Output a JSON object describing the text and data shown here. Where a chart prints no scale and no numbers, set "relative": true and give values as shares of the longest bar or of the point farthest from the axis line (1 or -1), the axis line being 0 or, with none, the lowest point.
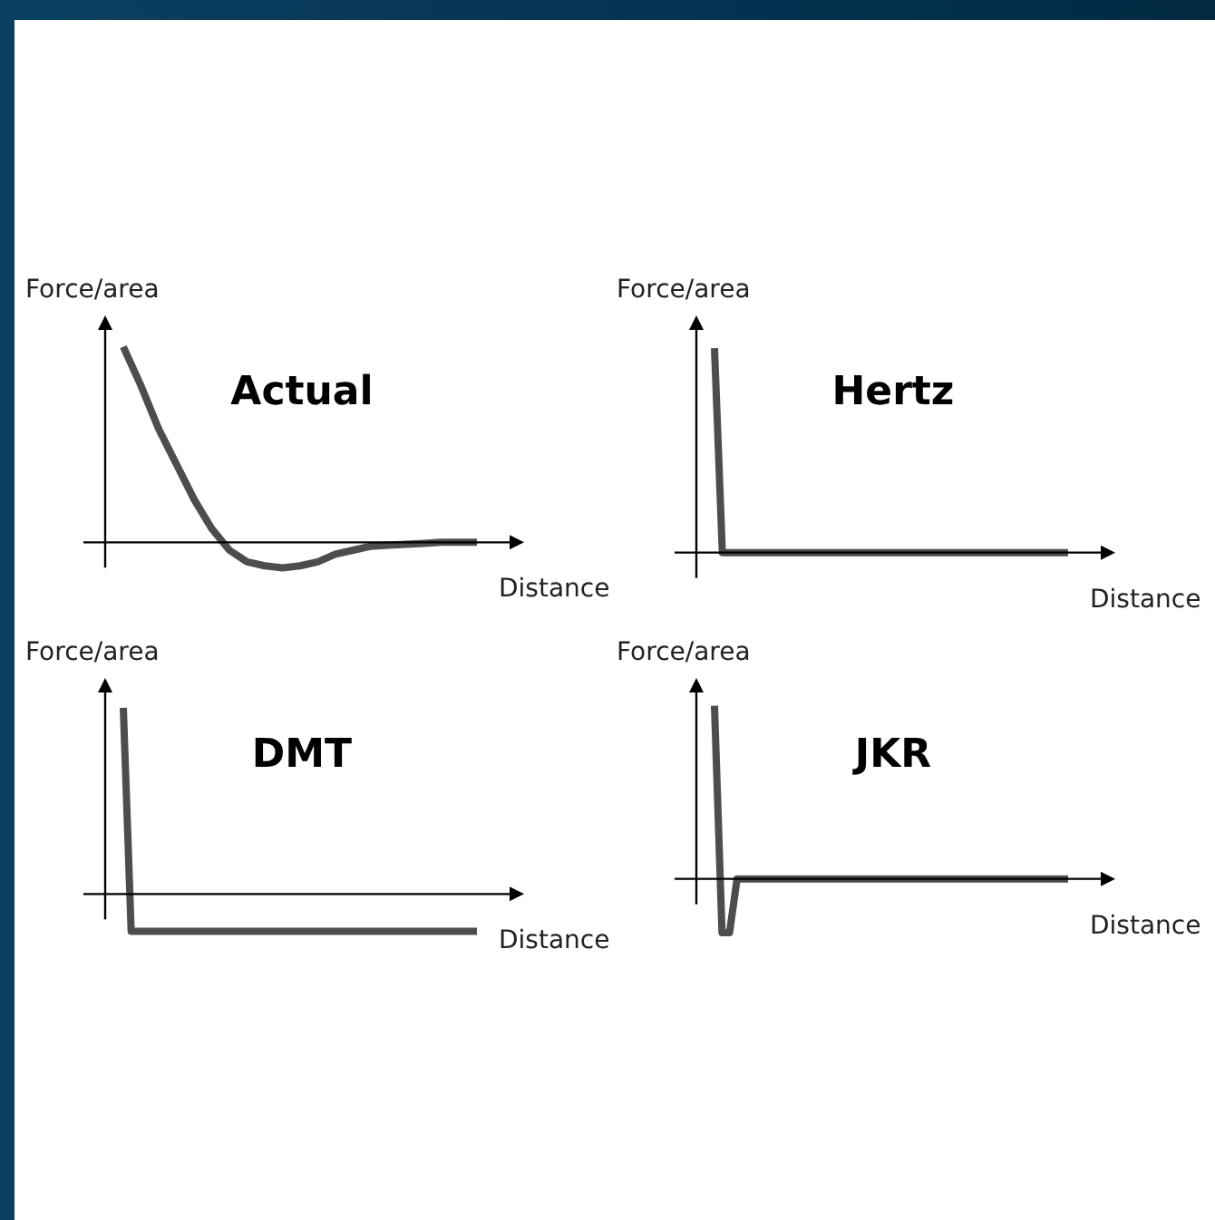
{
  "chart_data": [
    {
      "type": "line",
      "title": "Actual",
      "xlabel": "Distance",
      "ylabel": "Force/area",
      "relative": true,
      "categories": [
        null,
        null,
        null,
        null,
        null,
        null,
        null,
        null,
        null,
        null,
        null,
        null,
        null,
        null,
        null,
        null,
        null,
        null,
        null,
        null,
        null
      ],
      "series": [
        {
          "color": "#4d4d4d",
          "values": [
            1,
            0.8,
            0.58,
            0.4,
            0.22,
            0.07,
            -0.04,
            -0.1,
            -0.12,
            -0.13,
            -0.12,
            -0.1,
            -0.06,
            -0.04,
            -0.02,
            -0.015,
            -0.01,
            -0.005,
            0,
            0,
            0
          ]
        }
      ]
    },
    {
      "type": "line",
      "title": "Hertz",
      "xlabel": "Distance",
      "ylabel": "Force/area",
      "relative": true,
      "categories": [
        null,
        null,
        null,
        null,
        null,
        null,
        null,
        null,
        null,
        null,
        null,
        null,
        null,
        null,
        null,
        null,
        null,
        null,
        null,
        null,
        null,
        null,
        null,
        null,
        null,
        null,
        null,
        null,
        null,
        null,
        null,
        null,
        null,
        null,
        null,
        null,
        null,
        null,
        null,
        null,
        null,
        null,
        null,
        null,
        null,
        null
      ],
      "series": [
        {
          "color": "#4d4d4d",
          "values": [
            1,
            0,
            0,
            0,
            0,
            0,
            0,
            0,
            0,
            0,
            0,
            0,
            0,
            0,
            0,
            0,
            0,
            0,
            0,
            0,
            0,
            0,
            0,
            0,
            0,
            0,
            0,
            0,
            0,
            0,
            0,
            0,
            0,
            0,
            0,
            0,
            0,
            0,
            0,
            0,
            0,
            0,
            0,
            0,
            0,
            0
          ]
        }
      ]
    },
    {
      "type": "line",
      "title": "DMT",
      "xlabel": "Distance",
      "ylabel": "Force/area",
      "relative": true,
      "categories": [
        null,
        null,
        null,
        null,
        null,
        null,
        null,
        null,
        null,
        null,
        null,
        null,
        null,
        null,
        null,
        null,
        null,
        null,
        null,
        null,
        null,
        null,
        null,
        null,
        null,
        null,
        null,
        null,
        null,
        null,
        null,
        null,
        null,
        null,
        null,
        null,
        null,
        null,
        null,
        null,
        null,
        null,
        null,
        null,
        null,
        null
      ],
      "series": [
        {
          "color": "#4d4d4d",
          "values": [
            1,
            -0.2,
            -0.2,
            -0.2,
            -0.2,
            -0.2,
            -0.2,
            -0.2,
            -0.2,
            -0.2,
            -0.2,
            -0.2,
            -0.2,
            -0.2,
            -0.2,
            -0.2,
            -0.2,
            -0.2,
            -0.2,
            -0.2,
            -0.2,
            -0.2,
            -0.2,
            -0.2,
            -0.2,
            -0.2,
            -0.2,
            -0.2,
            -0.2,
            -0.2,
            -0.2,
            -0.2,
            -0.2,
            -0.2,
            -0.2,
            -0.2,
            -0.2,
            -0.2,
            -0.2,
            -0.2,
            -0.2,
            -0.2,
            -0.2,
            -0.2,
            -0.2,
            -0.2
          ]
        }
      ]
    },
    {
      "type": "line",
      "title": "JKR",
      "xlabel": "Distance",
      "ylabel": "Force/area",
      "relative": true,
      "categories": [
        null,
        null,
        null,
        null,
        null,
        null,
        null,
        null,
        null,
        null,
        null,
        null,
        null,
        null,
        null,
        null,
        null,
        null,
        null,
        null,
        null,
        null,
        null,
        null,
        null,
        null,
        null,
        null,
        null,
        null,
        null,
        null,
        null,
        null,
        null,
        null,
        null,
        null,
        null,
        null,
        null,
        null,
        null,
        null,
        null,
        null,
        null,
        null
      ],
      "series": [
        {
          "color": "#4d4d4d",
          "values": [
            1,
            -0.31,
            -0.31,
            0,
            0,
            0,
            0,
            0,
            0,
            0,
            0,
            0,
            0,
            0,
            0,
            0,
            0,
            0,
            0,
            0,
            0,
            0,
            0,
            0,
            0,
            0,
            0,
            0,
            0,
            0,
            0,
            0,
            0,
            0,
            0,
            0,
            0,
            0,
            0,
            0,
            0,
            0,
            0,
            0,
            0,
            0,
            0,
            0
          ]
        }
      ]
    }
  ]
}
